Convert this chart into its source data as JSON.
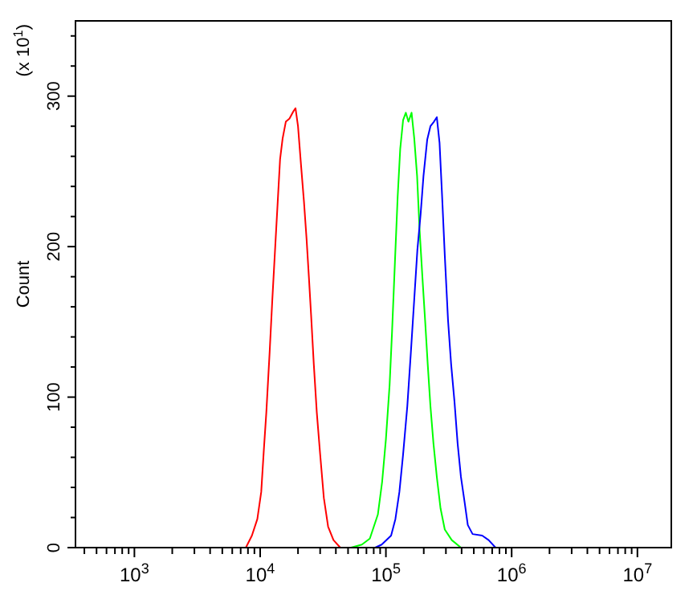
{
  "chart_data": {
    "type": "line",
    "ylabel": "Count",
    "annotations": [
      "(x 10$^{1}$)"
    ],
    "log": "x",
    "grid": false,
    "marker": "none",
    "line_style": "solid",
    "xlim": [
      340,
      18600000
    ],
    "ylim": [
      0,
      350
    ],
    "xticks": [
      {
        "value": 400,
        "label": null
      },
      {
        "value": 500,
        "label": null
      },
      {
        "value": 600,
        "label": null
      },
      {
        "value": 700,
        "label": null
      },
      {
        "value": 800,
        "label": null
      },
      {
        "value": 900,
        "label": null
      },
      {
        "value": 1000,
        "label": "10$^{3}$"
      },
      {
        "value": 2000,
        "label": null
      },
      {
        "value": 3000,
        "label": null
      },
      {
        "value": 4000,
        "label": null
      },
      {
        "value": 5000,
        "label": null
      },
      {
        "value": 6000,
        "label": null
      },
      {
        "value": 7000,
        "label": null
      },
      {
        "value": 8000,
        "label": null
      },
      {
        "value": 9000,
        "label": null
      },
      {
        "value": 10000,
        "label": "10$^{4}$"
      },
      {
        "value": 20000,
        "label": null
      },
      {
        "value": 30000,
        "label": null
      },
      {
        "value": 40000,
        "label": null
      },
      {
        "value": 50000,
        "label": null
      },
      {
        "value": 60000,
        "label": null
      },
      {
        "value": 70000,
        "label": null
      },
      {
        "value": 80000,
        "label": null
      },
      {
        "value": 90000,
        "label": null
      },
      {
        "value": 100000,
        "label": "10$^{5}$"
      },
      {
        "value": 200000,
        "label": null
      },
      {
        "value": 300000,
        "label": null
      },
      {
        "value": 400000,
        "label": null
      },
      {
        "value": 500000,
        "label": null
      },
      {
        "value": 600000,
        "label": null
      },
      {
        "value": 700000,
        "label": null
      },
      {
        "value": 800000,
        "label": null
      },
      {
        "value": 900000,
        "label": null
      },
      {
        "value": 1000000,
        "label": "10$^{6}$"
      },
      {
        "value": 2000000,
        "label": null
      },
      {
        "value": 3000000,
        "label": null
      },
      {
        "value": 4000000,
        "label": null
      },
      {
        "value": 5000000,
        "label": null
      },
      {
        "value": 6000000,
        "label": null
      },
      {
        "value": 7000000,
        "label": null
      },
      {
        "value": 8000000,
        "label": null
      },
      {
        "value": 9000000,
        "label": null
      },
      {
        "value": 10000000,
        "label": "10$^{7}$"
      }
    ],
    "yticks": [
      0,
      {
        "value": 20,
        "label": null
      },
      {
        "value": 40,
        "label": null
      },
      {
        "value": 60,
        "label": null
      },
      {
        "value": 80,
        "label": null
      },
      100,
      {
        "value": 120,
        "label": null
      },
      {
        "value": 140,
        "label": null
      },
      {
        "value": 160,
        "label": null
      },
      {
        "value": 180,
        "label": null
      },
      200,
      {
        "value": 220,
        "label": null
      },
      {
        "value": 240,
        "label": null
      },
      {
        "value": 260,
        "label": null
      },
      {
        "value": 280,
        "label": null
      },
      300,
      {
        "value": 320,
        "label": null
      },
      {
        "value": 340,
        "label": null
      }
    ],
    "series": [
      {
        "color": "#ff0000",
        "x": [
          7700,
          8600,
          9500,
          10200,
          10700,
          11200,
          11900,
          12500,
          13200,
          13800,
          14400,
          15100,
          16000,
          17100,
          18400,
          19100,
          20000,
          21100,
          22300,
          23400,
          24400,
          25400,
          26700,
          28200,
          30000,
          32100,
          34700,
          38300,
          43400
        ],
        "values": [
          0,
          8,
          19,
          37,
          65,
          90,
          130,
          165,
          201,
          230,
          258,
          272,
          283,
          285,
          290,
          292,
          280,
          255,
          230,
          205,
          180,
          155,
          122,
          90,
          62,
          33,
          14,
          5,
          0
        ]
      },
      {
        "color": "#00ff00",
        "x": [
          52800,
          64400,
          74500,
          86300,
          93400,
          100000,
          107000,
          112000,
          118000,
          124000,
          130000,
          137000,
          144000,
          151000,
          160000,
          168000,
          177000,
          185000,
          195000,
          205000,
          215000,
          226000,
          239000,
          254000,
          272000,
          294000,
          334000,
          395000
        ],
        "values": [
          0,
          2,
          6,
          22,
          44,
          72,
          108,
          144,
          190,
          233,
          265,
          284,
          289,
          283,
          289,
          272,
          247,
          212,
          180,
          151,
          122,
          94,
          69,
          47,
          26,
          12,
          5,
          0
        ]
      },
      {
        "color": "#0000ff",
        "x": [
          82200,
          92500,
          110000,
          119000,
          128000,
          137000,
          148000,
          158000,
          168000,
          178000,
          189000,
          199000,
          213000,
          226000,
          241000,
          254000,
          267000,
          280000,
          294000,
          312000,
          330000,
          351000,
          372000,
          395000,
          423000,
          448000,
          489000,
          583000,
          656000,
          745000
        ],
        "values": [
          0,
          2,
          8,
          19,
          37,
          62,
          94,
          130,
          165,
          198,
          222,
          247,
          271,
          280,
          283,
          286,
          269,
          233,
          194,
          151,
          122,
          97,
          69,
          47,
          30,
          15,
          9,
          8,
          5,
          0
        ]
      }
    ]
  }
}
